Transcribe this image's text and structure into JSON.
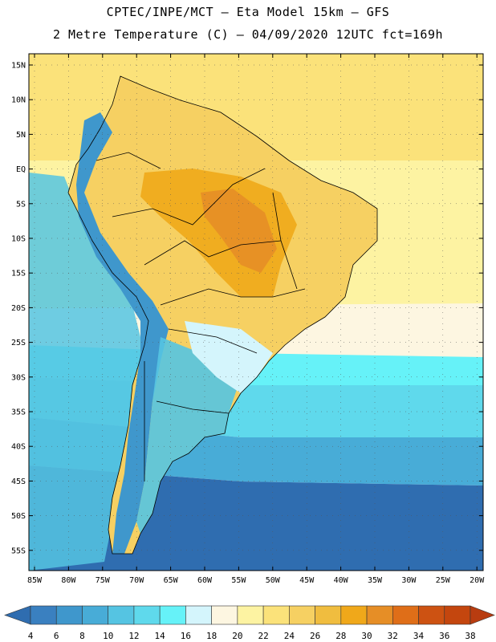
{
  "title_line_1": "CPTEC/INPE/MCT –  Eta Model 15km – GFS",
  "title_line_2": "2 Metre Temperature (C) – 04/09/2020 12UTC fct=169h",
  "lat_labels": [
    "15N",
    "10N",
    "5N",
    "EQ",
    "5S",
    "10S",
    "15S",
    "20S",
    "25S",
    "30S",
    "35S",
    "40S",
    "45S",
    "50S",
    "55S"
  ],
  "lon_labels": [
    "85W",
    "80W",
    "75W",
    "70W",
    "65W",
    "60W",
    "55W",
    "50W",
    "45W",
    "40W",
    "35W",
    "30W",
    "25W",
    "20W"
  ],
  "colorbar": {
    "levels": [
      "4",
      "6",
      "8",
      "10",
      "12",
      "14",
      "16",
      "18",
      "20",
      "22",
      "24",
      "26",
      "28",
      "30",
      "32",
      "34",
      "36",
      "38"
    ],
    "colors": [
      "#2f6db0",
      "#3a80c0",
      "#3f97cc",
      "#48acd7",
      "#55c4e2",
      "#5fd9ec",
      "#66f2f8",
      "#d4f5fc",
      "#fdf6e1",
      "#fdf3a2",
      "#fbe27a",
      "#f6d062",
      "#f0bd3f",
      "#f0a81a",
      "#e68e26",
      "#df6e18",
      "#cd5212",
      "#c4460e",
      "#b83c10"
    ]
  },
  "map_colors": {
    "ocean_cold": "#2f6db0",
    "ocean_cool": "#48acd7",
    "ocean_mid": "#5fd9ec",
    "ocean_light": "#66f2f8",
    "ocean_warm": "#fdf3a2",
    "ocean_hot": "#fbe27a",
    "land_warm": "#f6d062",
    "land_hot": "#f0a81a",
    "land_max": "#e68e26",
    "andes": "#3f97cc",
    "border": "#000000"
  }
}
